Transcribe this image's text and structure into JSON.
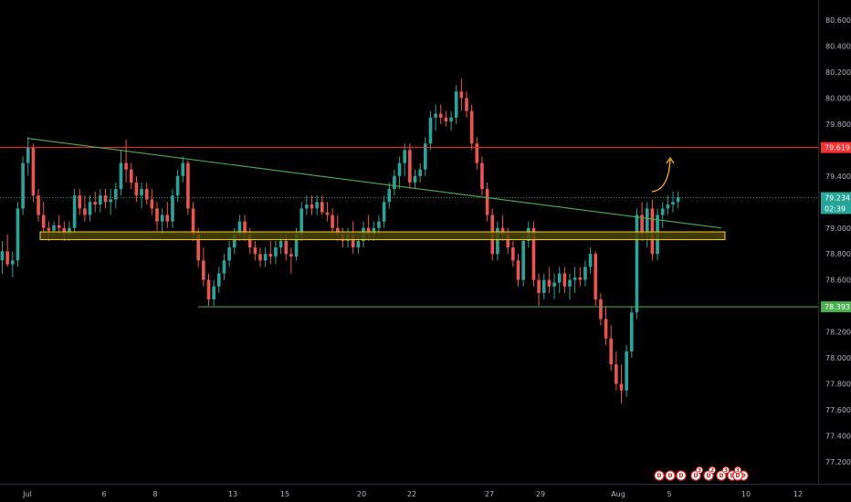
{
  "colors": {
    "background": "#000000",
    "up": "#26a69a",
    "down": "#ef5350",
    "resistance": "#ff3030",
    "support": "#4caf50",
    "trendline": "#4caf50",
    "zone_fill": "#4a4400",
    "zone_border": "#ffd600",
    "arrow": "#ffb300",
    "axis_text": "#b2b5be"
  },
  "price_axis": {
    "ticks": [
      "80.600",
      "80.400",
      "80.200",
      "80.000",
      "79.800",
      "79.600",
      "79.400",
      "79.200",
      "79.000",
      "78.800",
      "78.600",
      "78.400",
      "78.200",
      "78.000",
      "77.800",
      "77.600",
      "77.400",
      "77.200"
    ],
    "current_price": "79.234",
    "countdown": "02:39",
    "resistance_label": "79.619",
    "support_label": "78.393"
  },
  "time_axis": {
    "ticks": [
      "Jul",
      "6",
      "8",
      "13",
      "15",
      "20",
      "22",
      "27",
      "29",
      "Aug",
      "5",
      "10",
      "12"
    ]
  },
  "events": {
    "icons": [
      "D",
      "D",
      "D",
      "D",
      "D",
      "D",
      "D",
      "D",
      "D"
    ],
    "counters": [
      "3",
      "2",
      "3",
      "3"
    ]
  },
  "chart_data": {
    "type": "candlestick",
    "title": "",
    "ylim": [
      77.1,
      80.75
    ],
    "current_price": 79.234,
    "levels": {
      "resistance": 79.619,
      "support": 78.393,
      "zone": [
        78.91,
        78.97
      ],
      "trendline": {
        "start": [
          "Jul 1",
          79.69
        ],
        "end": [
          "Aug 4",
          79.0
        ]
      }
    },
    "candles": [
      [
        78.75,
        78.9,
        78.65,
        78.82
      ],
      [
        78.82,
        78.95,
        78.7,
        78.72
      ],
      [
        78.72,
        78.82,
        78.62,
        78.75
      ],
      [
        78.75,
        79.2,
        78.7,
        79.15
      ],
      [
        79.15,
        79.55,
        79.1,
        79.5
      ],
      [
        79.5,
        79.7,
        79.4,
        79.62
      ],
      [
        79.62,
        79.65,
        79.2,
        79.25
      ],
      [
        79.25,
        79.3,
        79.05,
        79.1
      ],
      [
        79.1,
        79.2,
        78.95,
        79.0
      ],
      [
        79.0,
        79.05,
        78.9,
        78.98
      ],
      [
        78.98,
        79.05,
        78.93,
        79.02
      ],
      [
        79.02,
        79.1,
        78.95,
        79.0
      ],
      [
        79.0,
        79.05,
        78.9,
        78.95
      ],
      [
        78.95,
        79.05,
        78.9,
        79.0
      ],
      [
        79.0,
        79.3,
        78.95,
        79.25
      ],
      [
        79.25,
        79.3,
        79.1,
        79.15
      ],
      [
        79.15,
        79.25,
        79.05,
        79.1
      ],
      [
        79.1,
        79.25,
        79.05,
        79.2
      ],
      [
        79.2,
        79.28,
        79.12,
        79.18
      ],
      [
        79.18,
        79.3,
        79.12,
        79.25
      ],
      [
        79.25,
        79.3,
        79.15,
        79.2
      ],
      [
        79.2,
        79.3,
        79.1,
        79.22
      ],
      [
        79.22,
        79.35,
        79.15,
        79.3
      ],
      [
        79.3,
        79.6,
        79.25,
        79.5
      ],
      [
        79.5,
        79.68,
        79.35,
        79.45
      ],
      [
        79.45,
        79.5,
        79.3,
        79.35
      ],
      [
        79.35,
        79.4,
        79.2,
        79.25
      ],
      [
        79.25,
        79.35,
        79.15,
        79.3
      ],
      [
        79.3,
        79.35,
        79.18,
        79.22
      ],
      [
        79.22,
        79.3,
        79.1,
        79.15
      ],
      [
        79.15,
        79.2,
        78.98,
        79.05
      ],
      [
        79.05,
        79.15,
        78.95,
        79.1
      ],
      [
        79.1,
        79.2,
        79.0,
        79.05
      ],
      [
        79.05,
        79.3,
        79.0,
        79.25
      ],
      [
        79.25,
        79.45,
        79.2,
        79.4
      ],
      [
        79.4,
        79.55,
        79.35,
        79.5
      ],
      [
        79.5,
        79.52,
        79.1,
        79.15
      ],
      [
        79.15,
        79.2,
        78.9,
        78.95
      ],
      [
        78.95,
        79.0,
        78.7,
        78.75
      ],
      [
        78.75,
        78.85,
        78.55,
        78.6
      ],
      [
        78.6,
        78.65,
        78.4,
        78.45
      ],
      [
        78.45,
        78.6,
        78.4,
        78.55
      ],
      [
        78.55,
        78.7,
        78.5,
        78.65
      ],
      [
        78.65,
        78.8,
        78.6,
        78.75
      ],
      [
        78.75,
        78.9,
        78.7,
        78.85
      ],
      [
        78.85,
        79.0,
        78.8,
        78.95
      ],
      [
        78.95,
        79.1,
        78.9,
        79.05
      ],
      [
        79.05,
        79.1,
        78.9,
        78.95
      ],
      [
        78.95,
        79.0,
        78.8,
        78.85
      ],
      [
        78.85,
        78.9,
        78.75,
        78.8
      ],
      [
        78.8,
        78.85,
        78.7,
        78.75
      ],
      [
        78.75,
        78.85,
        78.7,
        78.8
      ],
      [
        78.8,
        78.9,
        78.72,
        78.78
      ],
      [
        78.78,
        78.9,
        78.72,
        78.85
      ],
      [
        78.85,
        78.95,
        78.8,
        78.9
      ],
      [
        78.9,
        78.95,
        78.75,
        78.8
      ],
      [
        78.8,
        78.85,
        78.65,
        78.78
      ],
      [
        78.78,
        79.0,
        78.75,
        78.95
      ],
      [
        78.95,
        79.2,
        78.9,
        79.15
      ],
      [
        79.15,
        79.25,
        79.1,
        79.18
      ],
      [
        79.18,
        79.25,
        79.1,
        79.15
      ],
      [
        79.15,
        79.25,
        79.1,
        79.2
      ],
      [
        79.2,
        79.25,
        79.1,
        79.12
      ],
      [
        79.12,
        79.2,
        79.05,
        79.1
      ],
      [
        79.1,
        79.15,
        78.95,
        79.0
      ],
      [
        79.0,
        79.1,
        78.9,
        78.95
      ],
      [
        78.95,
        79.0,
        78.85,
        78.9
      ],
      [
        78.9,
        79.0,
        78.85,
        78.95
      ],
      [
        78.95,
        79.05,
        78.8,
        78.85
      ],
      [
        78.85,
        78.95,
        78.8,
        78.9
      ],
      [
        78.9,
        79.05,
        78.85,
        79.0
      ],
      [
        79.0,
        79.1,
        78.9,
        78.95
      ],
      [
        78.95,
        79.05,
        78.9,
        79.0
      ],
      [
        79.0,
        79.1,
        78.95,
        79.05
      ],
      [
        79.05,
        79.25,
        79.0,
        79.2
      ],
      [
        79.2,
        79.35,
        79.15,
        79.3
      ],
      [
        79.3,
        79.45,
        79.25,
        79.4
      ],
      [
        79.4,
        79.55,
        79.3,
        79.5
      ],
      [
        79.5,
        79.65,
        79.4,
        79.6
      ],
      [
        79.6,
        79.65,
        79.3,
        79.35
      ],
      [
        79.35,
        79.45,
        79.3,
        79.4
      ],
      [
        79.4,
        79.5,
        79.35,
        79.45
      ],
      [
        79.45,
        79.7,
        79.4,
        79.65
      ],
      [
        79.65,
        79.9,
        79.6,
        79.85
      ],
      [
        79.85,
        79.95,
        79.75,
        79.88
      ],
      [
        79.88,
        79.95,
        79.8,
        79.85
      ],
      [
        79.85,
        79.9,
        79.78,
        79.82
      ],
      [
        79.82,
        79.9,
        79.75,
        79.85
      ],
      [
        79.85,
        80.1,
        79.8,
        80.05
      ],
      [
        80.05,
        80.15,
        79.9,
        80.0
      ],
      [
        80.0,
        80.05,
        79.85,
        79.9
      ],
      [
        79.9,
        79.95,
        79.6,
        79.65
      ],
      [
        79.65,
        79.7,
        79.45,
        79.5
      ],
      [
        79.5,
        79.55,
        79.25,
        79.3
      ],
      [
        79.3,
        79.35,
        79.05,
        79.1
      ],
      [
        79.1,
        79.15,
        78.75,
        78.8
      ],
      [
        78.8,
        79.05,
        78.75,
        79.0
      ],
      [
        79.0,
        79.1,
        78.9,
        78.95
      ],
      [
        78.95,
        79.0,
        78.8,
        78.85
      ],
      [
        78.85,
        78.9,
        78.7,
        78.75
      ],
      [
        78.75,
        78.8,
        78.55,
        78.6
      ],
      [
        78.6,
        78.95,
        78.55,
        78.9
      ],
      [
        78.9,
        79.05,
        78.85,
        79.0
      ],
      [
        79.0,
        79.05,
        78.55,
        78.6
      ],
      [
        78.6,
        78.65,
        78.4,
        78.5
      ],
      [
        78.5,
        78.65,
        78.45,
        78.6
      ],
      [
        78.6,
        78.7,
        78.5,
        78.55
      ],
      [
        78.55,
        78.65,
        78.45,
        78.58
      ],
      [
        78.58,
        78.7,
        78.5,
        78.65
      ],
      [
        78.65,
        78.7,
        78.5,
        78.55
      ],
      [
        78.55,
        78.65,
        78.45,
        78.6
      ],
      [
        78.6,
        78.7,
        78.5,
        78.62
      ],
      [
        78.62,
        78.7,
        78.55,
        78.6
      ],
      [
        78.6,
        78.75,
        78.55,
        78.7
      ],
      [
        78.7,
        78.85,
        78.65,
        78.8
      ],
      [
        78.8,
        78.82,
        78.4,
        78.45
      ],
      [
        78.45,
        78.5,
        78.25,
        78.3
      ],
      [
        78.3,
        78.4,
        78.1,
        78.15
      ],
      [
        78.15,
        78.25,
        77.9,
        77.95
      ],
      [
        77.95,
        78.05,
        77.75,
        77.8
      ],
      [
        77.8,
        77.95,
        77.65,
        77.75
      ],
      [
        77.75,
        78.1,
        77.7,
        78.05
      ],
      [
        78.05,
        78.4,
        78.0,
        78.35
      ],
      [
        78.35,
        79.15,
        78.3,
        79.1
      ],
      [
        79.1,
        79.2,
        78.9,
        78.95
      ],
      [
        78.95,
        79.2,
        78.85,
        79.15
      ],
      [
        79.15,
        79.22,
        78.75,
        78.8
      ],
      [
        78.8,
        79.15,
        78.75,
        79.1
      ],
      [
        79.1,
        79.2,
        79.0,
        79.15
      ],
      [
        79.15,
        79.25,
        79.1,
        79.18
      ],
      [
        79.18,
        79.28,
        79.12,
        79.2
      ],
      [
        79.2,
        79.28,
        79.15,
        79.234
      ]
    ]
  }
}
